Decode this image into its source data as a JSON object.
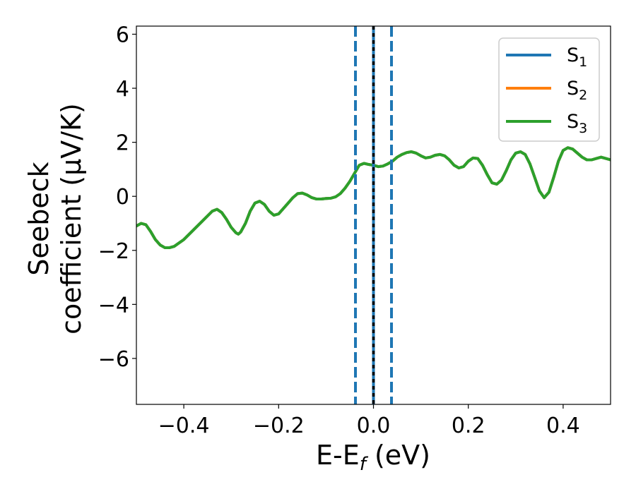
{
  "chart_data": {
    "type": "line",
    "xlabel": "E-E_f (eV)",
    "xlabel_parts": {
      "base": "E-E",
      "sub": "f",
      "tail": " (eV)"
    },
    "ylabel_lines": [
      "Seebeck",
      "coefficient  (μV/K)"
    ],
    "xlim": [
      -0.5,
      0.5
    ],
    "ylim": [
      -7.7,
      6.3
    ],
    "xticks": [
      -0.4,
      -0.2,
      0.0,
      0.2,
      0.4
    ],
    "xtick_labels": [
      "−0.4",
      "−0.2",
      "0.0",
      "0.2",
      "0.4"
    ],
    "yticks": [
      6,
      4,
      2,
      0,
      -2,
      -4,
      -6
    ],
    "ytick_labels": [
      "6",
      "4",
      "2",
      "0",
      "−2",
      "−4",
      "−6"
    ],
    "legend_position": "top-right",
    "series": [
      {
        "name": "S1",
        "label_base": "S",
        "label_sub": "1",
        "color": "#1f77b4"
      },
      {
        "name": "S2",
        "label_base": "S",
        "label_sub": "2",
        "color": "#ff7f0e"
      },
      {
        "name": "S3",
        "label_base": "S",
        "label_sub": "3",
        "color": "#2ca02c"
      }
    ],
    "curve": {
      "x": [
        -0.5,
        -0.49,
        -0.48,
        -0.47,
        -0.46,
        -0.45,
        -0.44,
        -0.43,
        -0.42,
        -0.4,
        -0.38,
        -0.36,
        -0.34,
        -0.33,
        -0.32,
        -0.31,
        -0.3,
        -0.29,
        -0.285,
        -0.28,
        -0.27,
        -0.26,
        -0.25,
        -0.24,
        -0.23,
        -0.22,
        -0.21,
        -0.2,
        -0.19,
        -0.18,
        -0.17,
        -0.16,
        -0.15,
        -0.14,
        -0.13,
        -0.12,
        -0.11,
        -0.1,
        -0.09,
        -0.08,
        -0.07,
        -0.06,
        -0.05,
        -0.045,
        -0.04,
        -0.03,
        -0.02,
        -0.01,
        0.0,
        0.01,
        0.02,
        0.03,
        0.04,
        0.05,
        0.06,
        0.07,
        0.08,
        0.09,
        0.1,
        0.11,
        0.12,
        0.13,
        0.14,
        0.15,
        0.16,
        0.17,
        0.18,
        0.19,
        0.2,
        0.21,
        0.22,
        0.23,
        0.24,
        0.25,
        0.26,
        0.27,
        0.28,
        0.29,
        0.3,
        0.31,
        0.32,
        0.33,
        0.34,
        0.35,
        0.36,
        0.37,
        0.38,
        0.39,
        0.4,
        0.41,
        0.42,
        0.43,
        0.44,
        0.45,
        0.46,
        0.47,
        0.48,
        0.49,
        0.5
      ],
      "y": [
        -1.1,
        -1.0,
        -1.05,
        -1.3,
        -1.6,
        -1.8,
        -1.9,
        -1.9,
        -1.85,
        -1.6,
        -1.25,
        -0.9,
        -0.55,
        -0.48,
        -0.6,
        -0.85,
        -1.15,
        -1.35,
        -1.4,
        -1.32,
        -1.0,
        -0.55,
        -0.25,
        -0.18,
        -0.3,
        -0.55,
        -0.7,
        -0.65,
        -0.45,
        -0.25,
        -0.05,
        0.1,
        0.12,
        0.05,
        -0.05,
        -0.1,
        -0.1,
        -0.08,
        -0.07,
        -0.02,
        0.1,
        0.3,
        0.55,
        0.7,
        0.85,
        1.15,
        1.22,
        1.18,
        1.15,
        1.1,
        1.12,
        1.2,
        1.3,
        1.45,
        1.55,
        1.62,
        1.65,
        1.6,
        1.5,
        1.42,
        1.45,
        1.52,
        1.55,
        1.5,
        1.35,
        1.15,
        1.05,
        1.1,
        1.3,
        1.42,
        1.4,
        1.15,
        0.8,
        0.5,
        0.45,
        0.6,
        0.95,
        1.35,
        1.6,
        1.65,
        1.55,
        1.2,
        0.7,
        0.2,
        -0.05,
        0.15,
        0.7,
        1.3,
        1.7,
        1.8,
        1.75,
        1.6,
        1.45,
        1.35,
        1.35,
        1.4,
        1.45,
        1.4,
        1.35
      ]
    },
    "vlines": [
      {
        "x": -0.038,
        "style": "dashed",
        "color": "#1f77b4"
      },
      {
        "x": 0.0,
        "style": "solid",
        "color": "#1f77b4"
      },
      {
        "x": 0.0,
        "style": "dotted",
        "color": "#000000"
      },
      {
        "x": 0.038,
        "style": "dashed",
        "color": "#1f77b4"
      }
    ],
    "grid": false
  }
}
